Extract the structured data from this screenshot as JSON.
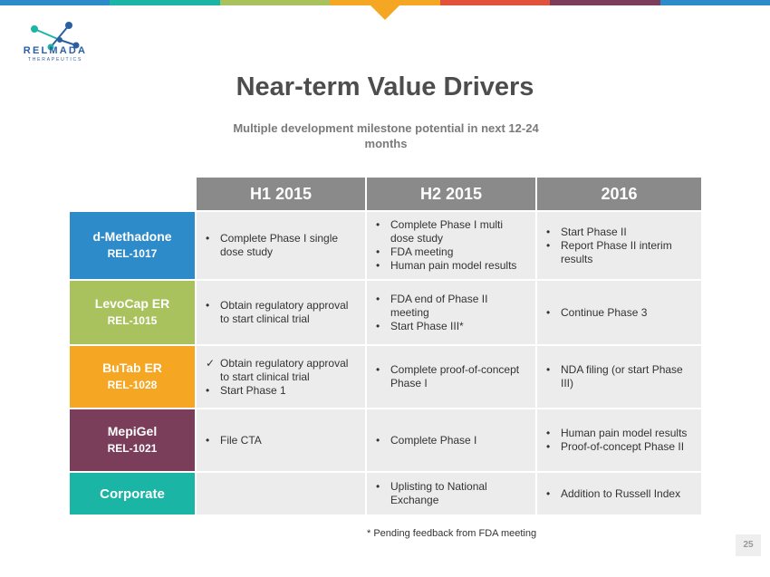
{
  "top_bar_colors": [
    "#2e8bc9",
    "#1bb5a6",
    "#a9c25d",
    "#f5a623",
    "#e0533a",
    "#7a3e5b",
    "#2e8bc9"
  ],
  "logo": {
    "name": "RELMADA",
    "sub": "THERAPEUTICS"
  },
  "title": "Near-term Value Drivers",
  "subtitle": "Multiple development milestone potential in next 12-24 months",
  "columns": [
    "H1 2015",
    "H2 2015",
    "2016"
  ],
  "rows": [
    {
      "name": "d-Methadone",
      "code": "REL-1017",
      "color": "#2e8bc9",
      "cells": [
        [
          {
            "mark": "•",
            "text": "Complete Phase I single dose study"
          }
        ],
        [
          {
            "mark": "•",
            "text": "Complete Phase I multi dose study"
          },
          {
            "mark": "•",
            "text": "FDA meeting"
          },
          {
            "mark": "•",
            "text": "Human pain model results"
          }
        ],
        [
          {
            "mark": "•",
            "text": "Start Phase II"
          },
          {
            "mark": "•",
            "text": "Report Phase II interim results"
          }
        ]
      ]
    },
    {
      "name": "LevoCap ER",
      "code": "REL-1015",
      "color": "#a9c25d",
      "cells": [
        [
          {
            "mark": "•",
            "text": "Obtain regulatory approval to start clinical trial"
          }
        ],
        [
          {
            "mark": "•",
            "text": "FDA end of Phase II meeting"
          },
          {
            "mark": "•",
            "text": "Start Phase III*"
          }
        ],
        [
          {
            "mark": "•",
            "text": "Continue Phase 3"
          }
        ]
      ]
    },
    {
      "name": "BuTab ER",
      "code": "REL-1028",
      "color": "#f5a623",
      "cells": [
        [
          {
            "mark": "✓",
            "text": "Obtain regulatory approval to start clinical trial"
          },
          {
            "mark": "•",
            "text": "Start Phase 1"
          }
        ],
        [
          {
            "mark": "•",
            "text": "Complete proof-of-concept Phase I"
          }
        ],
        [
          {
            "mark": "•",
            "text": "NDA filing (or start Phase III)"
          }
        ]
      ]
    },
    {
      "name": "MepiGel",
      "code": "REL-1021",
      "color": "#7a3e5b",
      "cells": [
        [
          {
            "mark": "•",
            "text": "File CTA"
          }
        ],
        [
          {
            "mark": "•",
            "text": "Complete Phase I"
          }
        ],
        [
          {
            "mark": "•",
            "text": "Human pain model results"
          },
          {
            "mark": "•",
            "text": "Proof-of-concept Phase II"
          }
        ]
      ]
    },
    {
      "name": "Corporate",
      "code": "",
      "color": "#1bb5a6",
      "cells": [
        [],
        [
          {
            "mark": "•",
            "text": "Uplisting to National Exchange"
          }
        ],
        [
          {
            "mark": "•",
            "text": "Addition to Russell Index"
          }
        ]
      ]
    }
  ],
  "footnote": "* Pending feedback from FDA meeting",
  "page_number": "25"
}
